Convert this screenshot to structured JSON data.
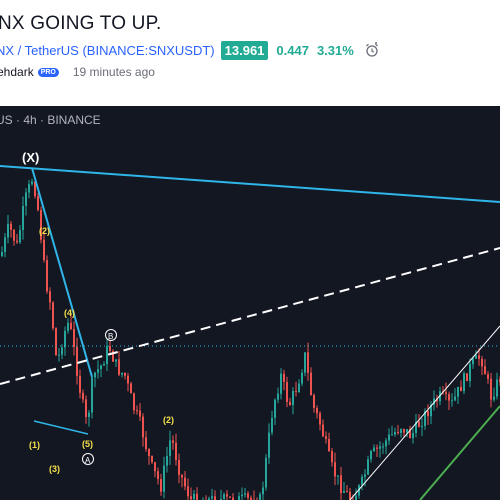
{
  "idea": {
    "title": "NX GOING TO UP.",
    "symbol": "NX / TetherUS (BINANCE:SNXUSDT)",
    "price": "13.961",
    "change": "0.447",
    "change_pct": "3.31%",
    "author": "ehdark",
    "author_badge": "PRO",
    "published": "19 minutes ago"
  },
  "chart": {
    "legend": "US · 4h · BINANCE",
    "annotations": {
      "x_label": "(X)",
      "w2": "(2)",
      "w4": "(4)",
      "w1": "(1)",
      "w3": "(3)",
      "w5": "(5)",
      "a": "A",
      "b": "B",
      "w2b": "(2)"
    },
    "colors": {
      "background": "#131722",
      "up": "#26a69a",
      "down": "#ef5350",
      "trendline": "#2fb5e8",
      "dashed": "#ffffff",
      "wave_labels": "#f5e04b",
      "support_line": "#4caf50"
    }
  }
}
